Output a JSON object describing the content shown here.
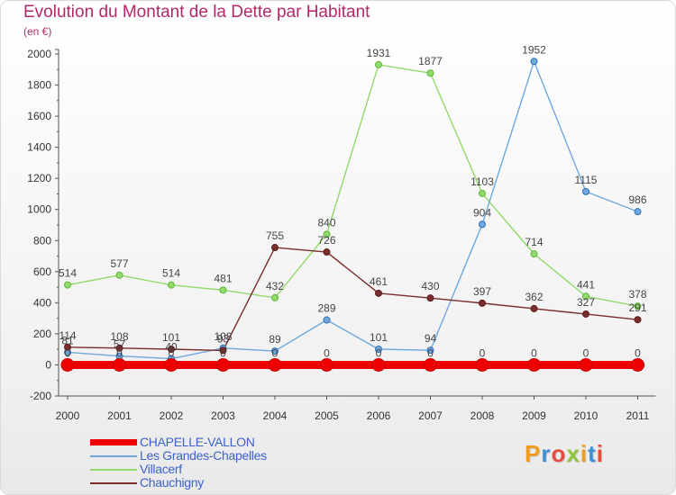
{
  "title": "Evolution du Montant de la Dette par Habitant",
  "subtitle": "(en €)",
  "logo": "Proxiti",
  "chart_data": {
    "type": "line",
    "title": "Evolution du Montant de la Dette par Habitant",
    "subtitle": "(en €)",
    "x": [
      "2000",
      "2001",
      "2002",
      "2003",
      "2004",
      "2005",
      "2006",
      "2007",
      "2008",
      "2009",
      "2010",
      "2011"
    ],
    "ylim": [
      -200,
      2000
    ],
    "yticks": [
      -200,
      0,
      200,
      400,
      600,
      800,
      1000,
      1200,
      1400,
      1600,
      1800,
      2000
    ],
    "grid": false,
    "legend_position": "bottom-left",
    "series": [
      {
        "name": "CHAPELLE-VALLON",
        "color": "#ee0000",
        "values": [
          0,
          0,
          0,
          0,
          0,
          0,
          0,
          0,
          0,
          0,
          0,
          0
        ]
      },
      {
        "name": "Les Grandes-Chapelles",
        "color": "#6fa8dc",
        "values": [
          81,
          57,
          40,
          108,
          89,
          289,
          101,
          94,
          904,
          1952,
          1115,
          986
        ]
      },
      {
        "name": "Villacerf",
        "color": "#93d96b",
        "values": [
          514,
          577,
          514,
          481,
          432,
          840,
          1931,
          1877,
          1103,
          714,
          441,
          378
        ]
      },
      {
        "name": "Chauchigny",
        "color": "#7b2c2c",
        "values": [
          114,
          108,
          101,
          93,
          755,
          726,
          461,
          430,
          397,
          362,
          327,
          291
        ]
      }
    ]
  }
}
